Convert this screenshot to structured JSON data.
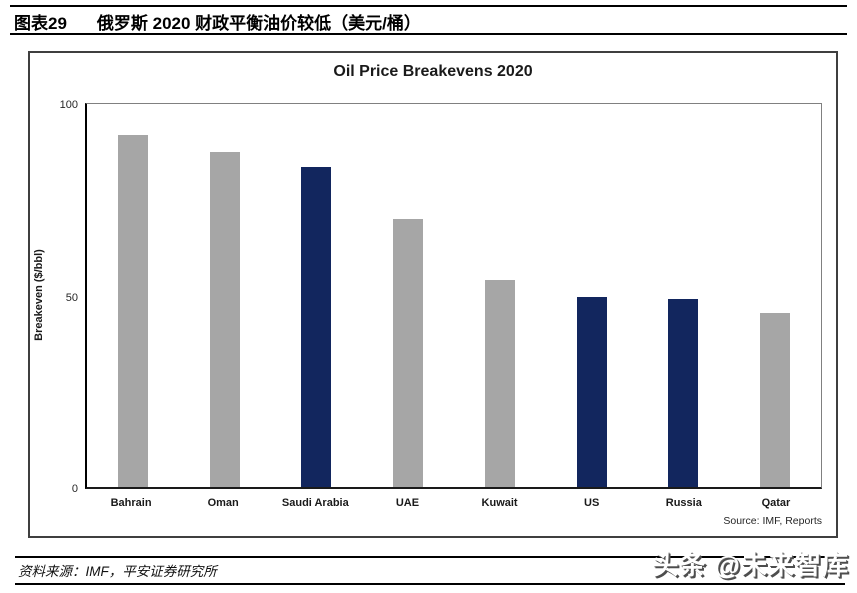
{
  "header": {
    "tag": "图表29",
    "title": "俄罗斯 2020 财政平衡油价较低（美元/桶）"
  },
  "chart": {
    "title": "Oil Price Breakevens 2020",
    "ylabel": "Breakeven ($/bbl)",
    "ytick_labels": {
      "t100": "100",
      "t50": "50",
      "t0": "0"
    },
    "source": "Source: IMF, Reports"
  },
  "chart_data": {
    "type": "bar",
    "title": "Oil Price Breakevens 2020",
    "categories": [
      "Bahrain",
      "Oman",
      "Saudi Arabia",
      "UAE",
      "Kuwait",
      "US",
      "Russia",
      "Qatar"
    ],
    "values": [
      92,
      87.5,
      83.5,
      70,
      54,
      49.5,
      49,
      45.5
    ],
    "bar_colors": [
      "#A6A6A6",
      "#A6A6A6",
      "#12265E",
      "#A6A6A6",
      "#A6A6A6",
      "#12265E",
      "#12265E",
      "#A6A6A6"
    ],
    "xlabel": "",
    "ylabel": "Breakeven ($/bbl)",
    "ylim": [
      0,
      100
    ],
    "yticks": [
      0,
      50,
      100
    ],
    "grid": false,
    "legend": false,
    "annotations": [
      "Source: IMF, Reports"
    ]
  },
  "footer": {
    "source_note": "资料来源：IMF，平安证券研究所",
    "watermark": "头条 @未来智库"
  },
  "colors": {
    "bar_gray": "#A6A6A6",
    "bar_navy": "#12265E",
    "chart_border": "#3F3F3F",
    "rule": "#000000"
  }
}
